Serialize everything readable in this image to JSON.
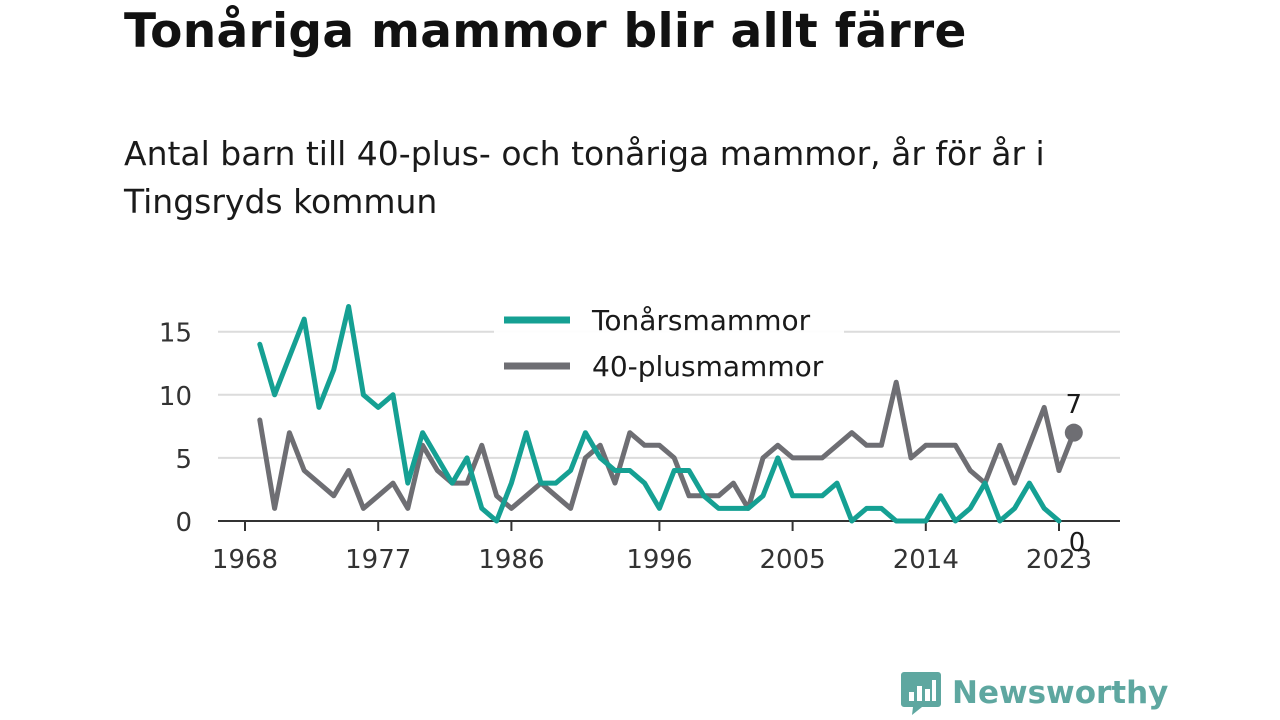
{
  "header": {
    "title": "Tonåriga mammor blir allt färre",
    "subtitle": "Antal barn till 40-plus- och tonåriga mammor, år för år i Tingsryds kommun"
  },
  "brand": {
    "name": "Newsworthy",
    "icon": "newsworthy-chart-bubble-icon",
    "color": "#5ea7a0"
  },
  "chart_data": {
    "type": "line",
    "x": [
      1969,
      1970,
      1971,
      1972,
      1973,
      1974,
      1975,
      1976,
      1977,
      1978,
      1979,
      1980,
      1981,
      1982,
      1983,
      1984,
      1985,
      1986,
      1987,
      1988,
      1989,
      1990,
      1991,
      1992,
      1993,
      1994,
      1995,
      1996,
      1997,
      1998,
      1999,
      2000,
      2001,
      2002,
      2003,
      2004,
      2005,
      2006,
      2007,
      2008,
      2009,
      2010,
      2011,
      2012,
      2013,
      2014,
      2015,
      2016,
      2017,
      2018,
      2019,
      2020,
      2021,
      2022,
      2023
    ],
    "series": [
      {
        "name": "Tonårsmammor",
        "color": "#15a093",
        "values": [
          14,
          10,
          13,
          16,
          9,
          12,
          17,
          10,
          9,
          10,
          3,
          7,
          5,
          3,
          5,
          1,
          0,
          3,
          7,
          3,
          3,
          4,
          7,
          5,
          4,
          4,
          3,
          1,
          4,
          4,
          2,
          1,
          1,
          1,
          2,
          5,
          2,
          2,
          2,
          3,
          0,
          1,
          1,
          0,
          0,
          0,
          2,
          0,
          1,
          3,
          0,
          1,
          3,
          1,
          0
        ]
      },
      {
        "name": "40-plusmammor",
        "color": "#6e6e73",
        "values": [
          8,
          1,
          7,
          4,
          3,
          2,
          4,
          1,
          2,
          3,
          1,
          6,
          4,
          3,
          3,
          6,
          2,
          1,
          2,
          3,
          2,
          1,
          5,
          6,
          3,
          7,
          6,
          6,
          5,
          2,
          2,
          2,
          3,
          1,
          5,
          6,
          5,
          5,
          5,
          6,
          7,
          6,
          6,
          11,
          5,
          6,
          6,
          6,
          4,
          3,
          6,
          3,
          6,
          9,
          4
        ]
      }
    ],
    "x_ticks": [
      "1968",
      "1977",
      "1986",
      "1996",
      "2005",
      "2014",
      "2023"
    ],
    "y_ticks": [
      "0",
      "5",
      "10",
      "15"
    ],
    "ylim": [
      0,
      17
    ],
    "end_labels": {
      "Tonårsmammor": "0",
      "40-plusmammor": "7"
    },
    "end_point": {
      "x": 2024,
      "value": 7
    },
    "grid": "horizontal",
    "legend": "top-center"
  }
}
